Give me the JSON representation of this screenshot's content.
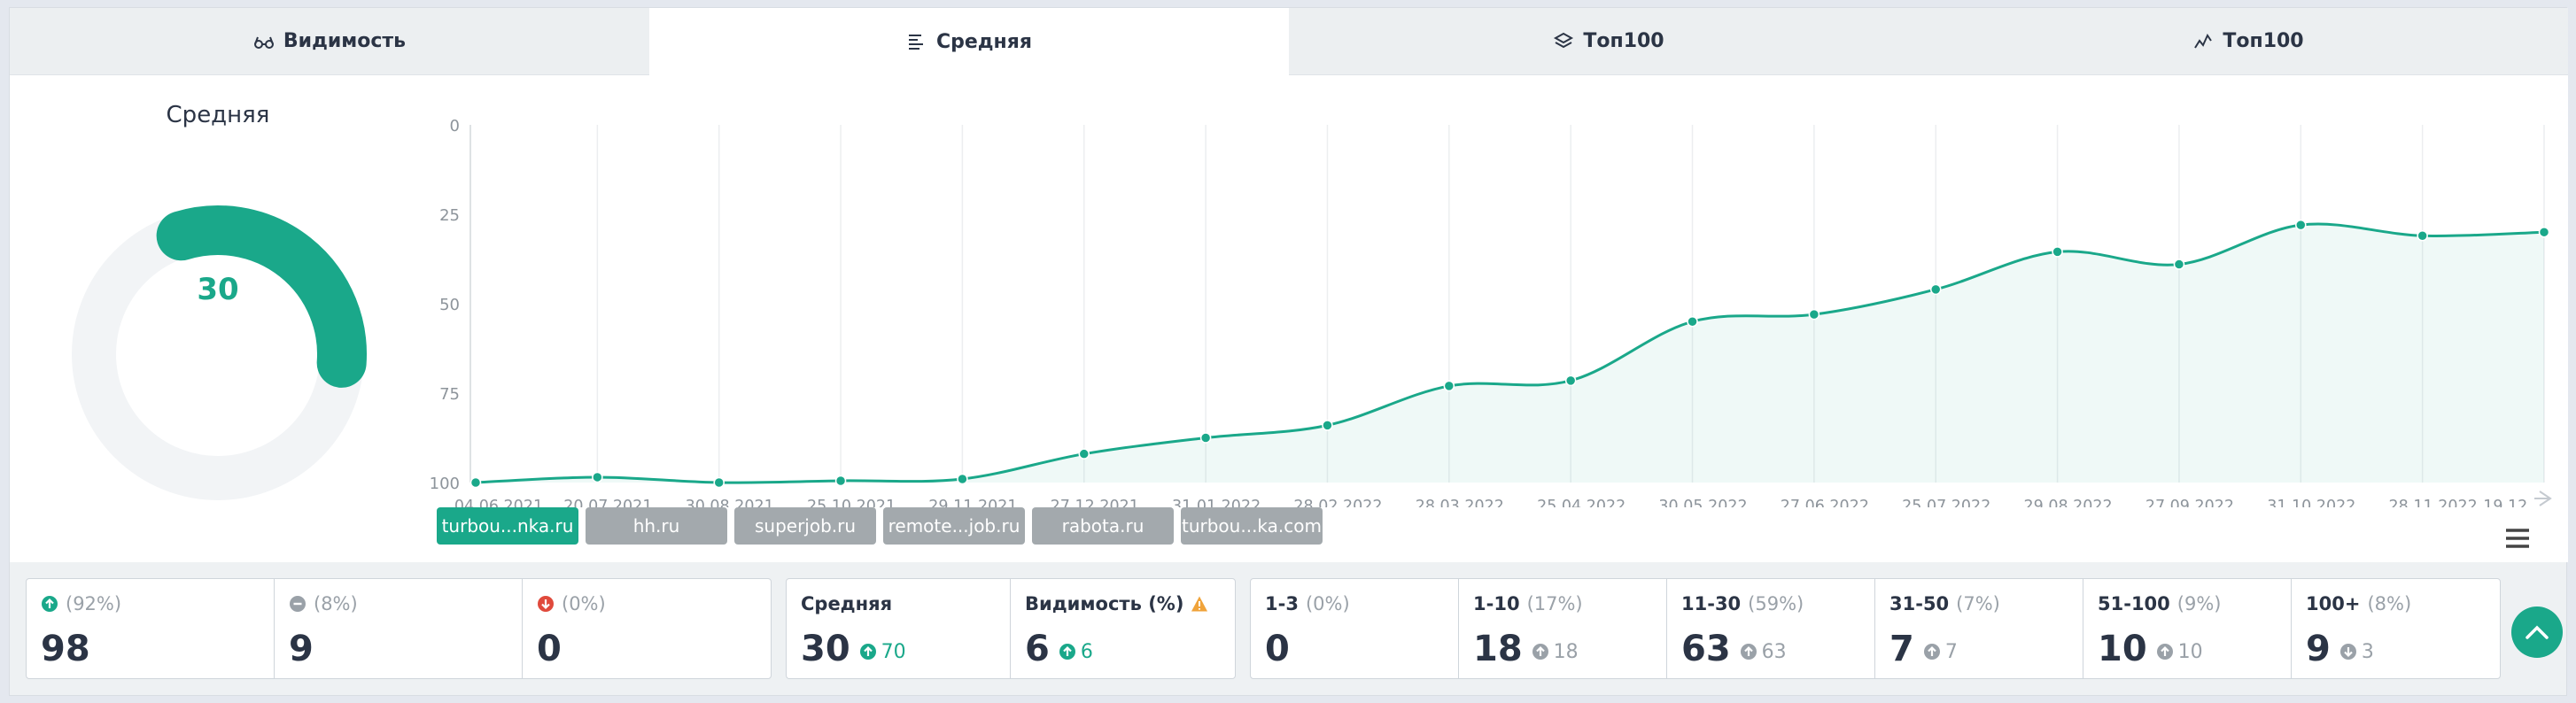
{
  "tabs": [
    {
      "label": "Видимость",
      "icon": "glasses-icon",
      "active": false
    },
    {
      "label": "Средняя",
      "icon": "lines-icon",
      "active": true
    },
    {
      "label": "Топ100",
      "icon": "layers-icon",
      "active": false
    },
    {
      "label": "Топ100",
      "icon": "trend-icon",
      "active": false
    }
  ],
  "gauge": {
    "title": "Средняя",
    "value": "30",
    "fraction": 0.3
  },
  "colors": {
    "accent": "#1aa88a",
    "up": "#1aa88a",
    "down": "#e04a3c",
    "neutral": "#9aa1a8",
    "warning": "#f0a33a"
  },
  "chart_data": {
    "type": "line",
    "x": [
      "04.06.2021",
      "20.07.2021",
      "30.08.2021",
      "25.10.2021",
      "29.11.2021",
      "27.12.2021",
      "31.01.2022",
      "28.02.2022",
      "28.03.2022",
      "25.04.2022",
      "30.05.2022",
      "27.06.2022",
      "25.07.2022",
      "29.08.2022",
      "27.09.2022",
      "31.10.2022",
      "28.11.2022",
      "19.12..."
    ],
    "series": [
      {
        "values": [
          100,
          98.5,
          100,
          99.5,
          99,
          92,
          87.5,
          84,
          73,
          71.5,
          55,
          53,
          46,
          35.5,
          39,
          28,
          31,
          30
        ]
      }
    ],
    "y_ticks": [
      "0",
      "25",
      "50",
      "75",
      "100"
    ],
    "ylim": [
      0,
      100
    ],
    "y_reversed": true,
    "grid": "vertical"
  },
  "chips": [
    {
      "label": "turbou...nka.ru",
      "active": true
    },
    {
      "label": "hh.ru",
      "active": false
    },
    {
      "label": "superjob.ru",
      "active": false
    },
    {
      "label": "remote...job.ru",
      "active": false
    },
    {
      "label": "rabota.ru",
      "active": false
    },
    {
      "label": "turbou...ka.com",
      "active": false
    }
  ],
  "stats": {
    "changes": [
      {
        "pct": "(92%)",
        "value": "98",
        "icon": "arrow-up-circle-icon"
      },
      {
        "pct": "(8%)",
        "value": "9",
        "icon": "minus-circle-icon"
      },
      {
        "pct": "(0%)",
        "value": "0",
        "icon": "arrow-down-circle-icon"
      }
    ],
    "summary": [
      {
        "label": "Средняя",
        "value": "30",
        "delta": "70"
      },
      {
        "label": "Видимость (%)",
        "value": "6",
        "delta": "6"
      }
    ],
    "ranges": [
      {
        "label": "1-3",
        "pct": "(0%)",
        "value": "0",
        "delta": ""
      },
      {
        "label": "1-10",
        "pct": "(17%)",
        "value": "18",
        "delta": "18",
        "dir": "up"
      },
      {
        "label": "11-30",
        "pct": "(59%)",
        "value": "63",
        "delta": "63",
        "dir": "up"
      },
      {
        "label": "31-50",
        "pct": "(7%)",
        "value": "7",
        "delta": "7",
        "dir": "up"
      },
      {
        "label": "51-100",
        "pct": "(9%)",
        "value": "10",
        "delta": "10",
        "dir": "up"
      },
      {
        "label": "100+",
        "pct": "(8%)",
        "value": "9",
        "delta": "3",
        "dir": "down"
      }
    ]
  }
}
